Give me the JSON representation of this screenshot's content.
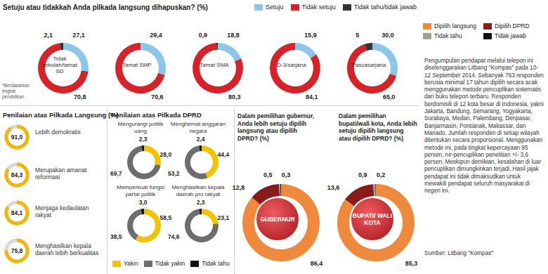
{
  "chart_data": [
    {
      "type": "pie",
      "title": "Setuju atau tidakkah Anda pilkada langsung dihapuskan? (%)",
      "categories": [
        "Tidak sekolah/tamat SD",
        "Tamat SMP",
        "Tamat SMA",
        "D-3/sarjana",
        "Pascasarjana"
      ],
      "series": [
        {
          "name": "Setuju",
          "color": "#8cc7ea",
          "values": [
            27.1,
            29.4,
            18.8,
            15.9,
            30.0
          ],
          "value_labels": [
            "27,1",
            "29,4",
            "18,8",
            "15,9",
            "30,0"
          ]
        },
        {
          "name": "Tidak setuju",
          "color": "#d8222a",
          "values": [
            70.8,
            70.6,
            80.3,
            84.1,
            65.0
          ],
          "value_labels": [
            "70,8",
            "70,6",
            "80,3",
            "84,1",
            "65,0"
          ]
        },
        {
          "name": "Tidak tahu/tidak jawab",
          "color": "#333333",
          "values": [
            2.1,
            null,
            0.9,
            null,
            5
          ],
          "value_labels": [
            "2,1",
            null,
            "0,9",
            null,
            "5"
          ]
        }
      ],
      "data_labels": true,
      "annotations": [
        "*Berdasarkan tingkat pendidikan"
      ]
    },
    {
      "type": "radial_bar",
      "title": "Penilaian atas Pilkada Langsung (%)",
      "categories": [
        "Lebih demokratis",
        "Merupakan amanat reformasi",
        "Menjaga kedaulatan rakyat",
        "Menghasilkan kepala daerah lebih berkualitas"
      ],
      "values": [
        91.0,
        84.3,
        84.1,
        75.8
      ],
      "value_labels": [
        "91,0",
        "84,3",
        "84,1",
        "75,8"
      ],
      "color": "#f2b705",
      "ylim": [
        0,
        100
      ],
      "data_labels": true
    },
    {
      "type": "pie",
      "title": "Penilaian atas Pilkada DPRD",
      "categories": [
        "Mengurangi politik uang",
        "Menghemat anggaran negara",
        "Memperkuat fungsi partai politik",
        "Menghasilkan kepala daerah pro rakyat"
      ],
      "series": [
        {
          "name": "Yakin",
          "color": "#f3c300",
          "values": [
            28.0,
            44.4,
            58.5,
            23.1
          ],
          "value_labels": [
            "28,0",
            "44,4",
            "58,5",
            "23,1"
          ]
        },
        {
          "name": "Tidak yakin",
          "color": "#6d6d6d",
          "values": [
            69.7,
            53.2,
            38.5,
            74.6
          ],
          "value_labels": [
            "69,7",
            "53,2",
            "38,5",
            "74,6"
          ]
        },
        {
          "name": "Tidak tahu",
          "color": "#111111",
          "values": [
            2.3,
            2.4,
            3.0,
            2.3
          ],
          "value_labels": [
            "2,3",
            "2,4",
            "3,0",
            "2,3"
          ]
        }
      ],
      "data_labels": true
    },
    {
      "type": "pie",
      "categories": [
        "GUBERNUR",
        "BUPATI/ WALI KOTA"
      ],
      "annotations": [
        "Dalam pemilihan gubernur, Anda lebih setuju dipilih langsung atau dipilih DPRD? (%)",
        "Dalam pemilihan bupati/wali kota, Anda lebih setuju dipilih langsung atau dipilih DPRD? (%)"
      ],
      "series": [
        {
          "name": "Dipilih langsung",
          "color": "#ef8a3c",
          "values": [
            86.4,
            85.3
          ],
          "value_labels": [
            "86,4",
            "85,3"
          ]
        },
        {
          "name": "Dipilih DPRD",
          "color": "#8b1a1a",
          "values": [
            12.8,
            13.6
          ],
          "value_labels": [
            "12,8",
            "13,6"
          ]
        },
        {
          "name": "Tidak tahu",
          "color": "#a0a0a0",
          "values": [
            0.5,
            0.9
          ],
          "value_labels": [
            "0,5",
            "0,9"
          ]
        },
        {
          "name": "Tidak jawab",
          "color": "#111111",
          "values": [
            0.3,
            0.2
          ],
          "value_labels": [
            "0,3",
            "0,2"
          ]
        }
      ],
      "data_labels": true
    }
  ],
  "methodology": "Pengumpulan pendapat melalui telepon ini diselenggarakan Litbang \"Kompas\" pada 10-12 September 2014. Sebanyak 763 responden berusia minimal 17 tahun dipilih secara acak menggunakan metode pencuplikan sistematis dari buku telepon terbaru. Responden berdomisili di 12 kota besar di Indonesia, yakni Jakarta, Bandung, Semarang, Yogyakarta, Surabaya, Medan, Palembang, Denpasar, Banjarmasin, Pontianak, Makassar, dan Manado. Jumlah responden di setiap wilayah ditentukan secara proporsional. Menggunakan metode ini, pada tingkat kepercayaan 95 persen, nir-pencuplikan penelitian +/- 3,6 persen. Meskipun demikian, kesalahan di luar pencuplikan dimungkinkan terjadi. Hasil jajak pendapat ini tidak dimaksudkan untuk mewakili pendapat seluruh masyarakat di negeri ini.",
  "source": "Sumber: Litbang \"Kompas\""
}
